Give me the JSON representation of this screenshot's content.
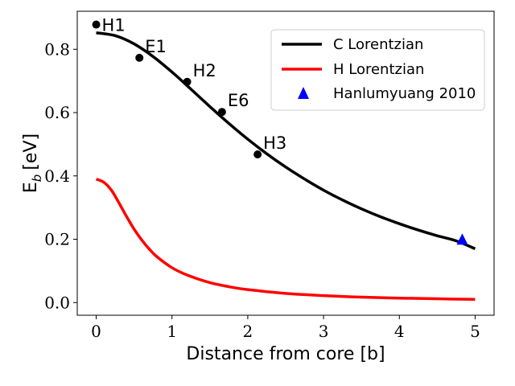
{
  "chart_data": {
    "type": "line",
    "xlabel": "Distance from core [b]",
    "ylabel_main": "E",
    "ylabel_sub": "b",
    "ylabel_unit": "[eV]",
    "xlim": [
      -0.25,
      5.25
    ],
    "ylim": [
      -0.04,
      0.92
    ],
    "xticks": [
      0,
      1,
      2,
      3,
      4,
      5
    ],
    "xtick_labels": [
      "0",
      "1",
      "2",
      "3",
      "4",
      "5"
    ],
    "yticks": [
      0.0,
      0.2,
      0.4,
      0.6,
      0.8
    ],
    "ytick_labels": [
      "0.0",
      "0.2",
      "0.4",
      "0.6",
      "0.8"
    ],
    "grid": false,
    "legend_position": "top-right",
    "series": [
      {
        "name": "C Lorentzian",
        "kind": "line",
        "color": "#000000",
        "x": [
          0,
          0.25,
          0.5,
          0.75,
          1.0,
          1.25,
          1.5,
          1.75,
          2.0,
          2.25,
          2.5,
          2.75,
          3.0,
          3.25,
          3.5,
          3.75,
          4.0,
          4.25,
          4.5,
          4.75,
          5.0
        ],
        "y": [
          0.852,
          0.843,
          0.817,
          0.777,
          0.728,
          0.674,
          0.619,
          0.566,
          0.516,
          0.47,
          0.428,
          0.39,
          0.355,
          0.324,
          0.296,
          0.271,
          0.249,
          0.229,
          0.211,
          0.195,
          0.17
        ]
      },
      {
        "name": "H Lorentzian",
        "kind": "line",
        "color": "#ff0000",
        "x": [
          0,
          0.1,
          0.2,
          0.3,
          0.4,
          0.5,
          0.6,
          0.7,
          0.8,
          1.0,
          1.2,
          1.5,
          1.8,
          2.0,
          2.5,
          3.0,
          3.5,
          4.0,
          4.5,
          5.0
        ],
        "y": [
          0.39,
          0.38,
          0.355,
          0.315,
          0.272,
          0.232,
          0.198,
          0.169,
          0.145,
          0.11,
          0.087,
          0.063,
          0.048,
          0.041,
          0.029,
          0.022,
          0.017,
          0.014,
          0.012,
          0.01
        ]
      },
      {
        "name": "Hanlumyuang 2010",
        "kind": "marker",
        "marker": "triangle",
        "color": "#0000ff",
        "x": [
          4.83
        ],
        "y": [
          0.198
        ]
      }
    ],
    "points": [
      {
        "label": "H1",
        "x": 0.0,
        "y": 0.878
      },
      {
        "label": "E1",
        "x": 0.57,
        "y": 0.773
      },
      {
        "label": "H2",
        "x": 1.2,
        "y": 0.697
      },
      {
        "label": "E6",
        "x": 1.66,
        "y": 0.602
      },
      {
        "label": "H3",
        "x": 2.13,
        "y": 0.468
      }
    ]
  }
}
